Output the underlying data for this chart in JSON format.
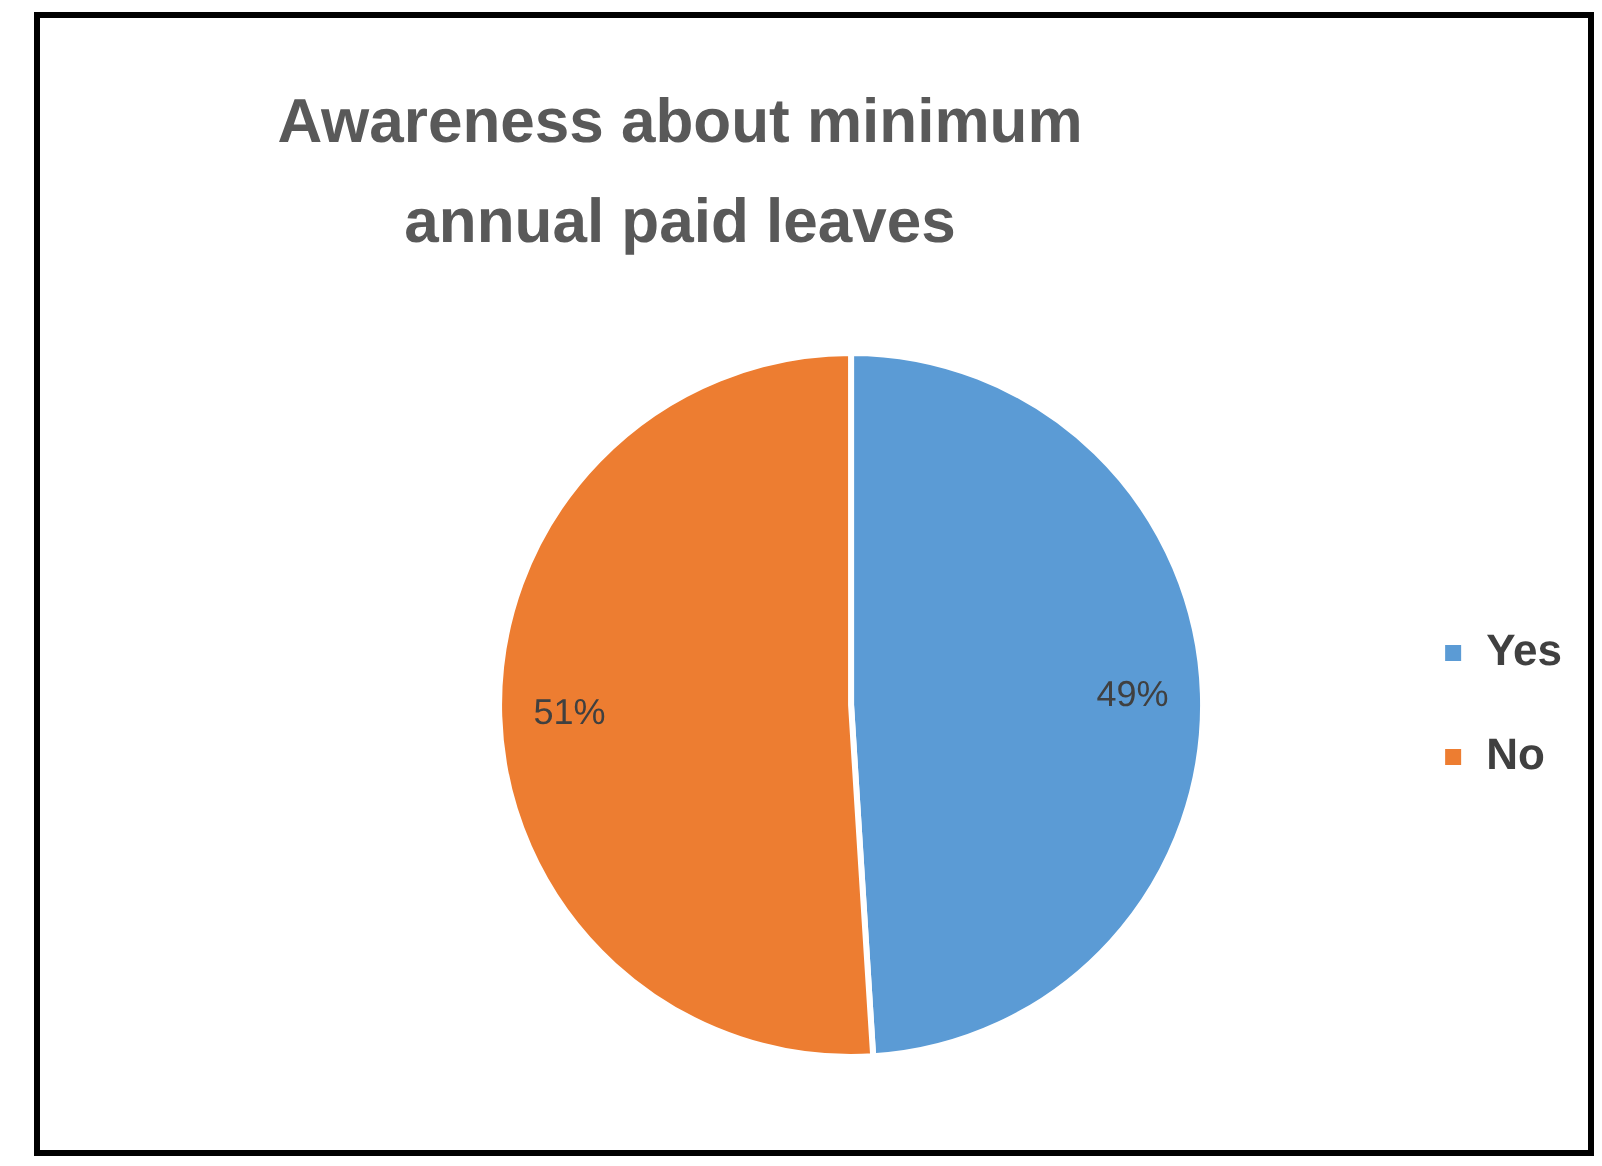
{
  "chart_data": {
    "type": "pie",
    "title": "Awareness about minimum annual paid leaves",
    "categories": [
      "Yes",
      "No"
    ],
    "values": [
      49,
      51
    ],
    "colors": [
      "#5b9bd5",
      "#ed7d31"
    ],
    "value_labels": [
      "49%",
      "51%"
    ],
    "legend": "right"
  }
}
